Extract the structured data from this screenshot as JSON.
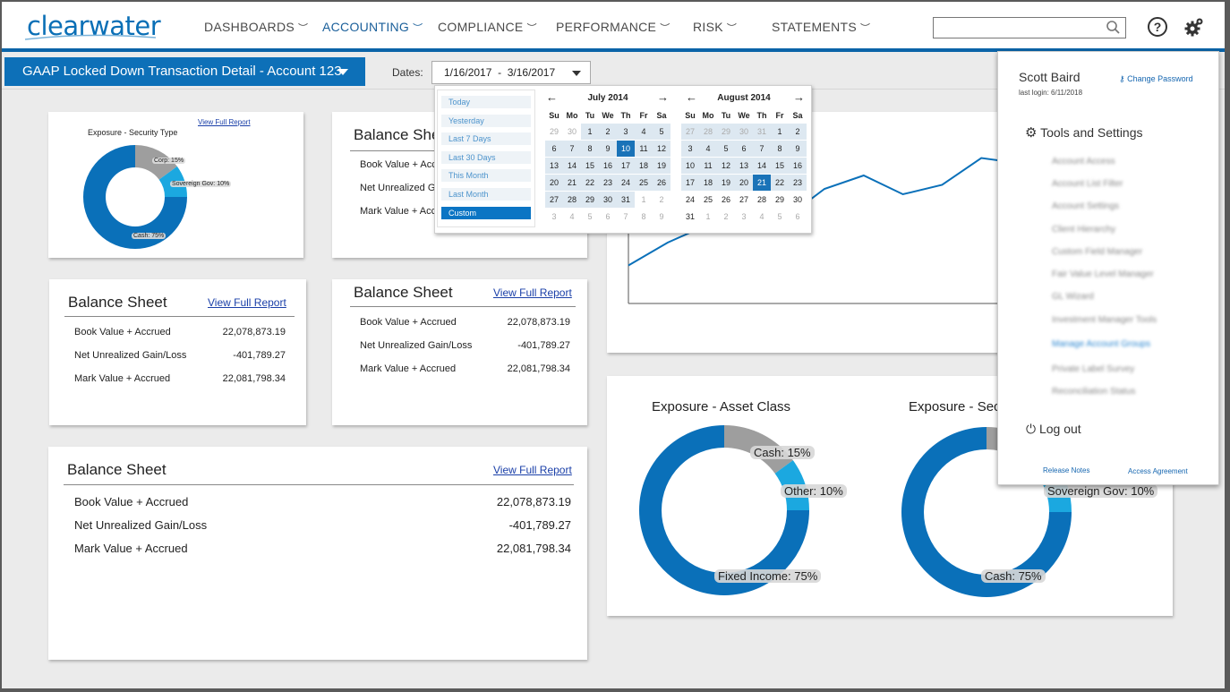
{
  "brand": {
    "name": "clearwater"
  },
  "nav": [
    {
      "label": "DASHBOARDS",
      "active": false
    },
    {
      "label": "ACCOUNTING",
      "active": true
    },
    {
      "label": "COMPLIANCE",
      "active": false
    },
    {
      "label": "PERFORMANCE",
      "active": false
    },
    {
      "label": "RISK",
      "active": false
    },
    {
      "label": "STATEMENTS",
      "active": false
    }
  ],
  "search": {
    "value": ""
  },
  "header": {
    "help_icon": "question-circle-icon",
    "settings_icon": "gear-icon"
  },
  "subbar": {
    "title": "GAAP Locked Down Transaction Detail - Account 123",
    "dates_label": "Dates:",
    "date_from": "1/16/2017",
    "date_sep": "-",
    "date_to": "3/16/2017"
  },
  "date_picker": {
    "quick": [
      "Today",
      "Yesterday",
      "Last 7 Days",
      "Last 30 Days",
      "This Month",
      "Last Month",
      "Custom"
    ],
    "quick_selected": "Custom",
    "dow": [
      "Su",
      "Mo",
      "Tu",
      "We",
      "Th",
      "Fr",
      "Sa"
    ],
    "months": [
      {
        "title": "July 2014",
        "weeks": [
          [
            "29",
            "30",
            "1",
            "2",
            "3",
            "4",
            "5"
          ],
          [
            "6",
            "7",
            "8",
            "9",
            "10",
            "11",
            "12"
          ],
          [
            "13",
            "14",
            "15",
            "16",
            "17",
            "18",
            "19"
          ],
          [
            "20",
            "21",
            "22",
            "23",
            "24",
            "25",
            "26"
          ],
          [
            "27",
            "28",
            "29",
            "30",
            "31",
            "1",
            "2"
          ],
          [
            "3",
            "4",
            "5",
            "6",
            "7",
            "8",
            "9"
          ]
        ]
      },
      {
        "title": "August 2014",
        "weeks": [
          [
            "27",
            "28",
            "29",
            "30",
            "31",
            "1",
            "2"
          ],
          [
            "3",
            "4",
            "5",
            "6",
            "7",
            "8",
            "9"
          ],
          [
            "10",
            "11",
            "12",
            "13",
            "14",
            "15",
            "16"
          ],
          [
            "17",
            "18",
            "19",
            "20",
            "21",
            "22",
            "23"
          ],
          [
            "24",
            "25",
            "26",
            "27",
            "28",
            "29",
            "30"
          ],
          [
            "31",
            "1",
            "2",
            "3",
            "4",
            "5",
            "6"
          ]
        ]
      }
    ]
  },
  "cards": {
    "small_exposure": {
      "title": "Exposure - Security Type",
      "link": "View Full Report",
      "labels": [
        "Corp: 15%",
        "Sovereign Gov: 10%",
        "Cash: 75%"
      ]
    },
    "balance_a": {
      "title": "Balance Sheet",
      "link": "View Full Report",
      "rows": [
        {
          "label": "Book Value + Accrued",
          "value": "22,078,873.19"
        },
        {
          "label": "Net Unrealized Gain/Loss",
          "value": "-401,789.27"
        },
        {
          "label": "Mark Value + Accrued",
          "value": "22,081,798.34"
        }
      ]
    },
    "balance_b": {
      "title": "Balance Sheet",
      "link": "View Full Report",
      "rows": [
        {
          "label": "Book Value + Accrued",
          "value": "22,078,873.19"
        },
        {
          "label": "Net Unrealized Gain/Loss",
          "value": "-401,789.27"
        },
        {
          "label": "Mark Value + Accrued",
          "value": "22,081,798.34"
        }
      ]
    },
    "balance_top": {
      "title": "Balance Sheet",
      "rows": [
        {
          "label": "Book Value + Accrued"
        },
        {
          "label": "Net Unrealized Gain/Loss"
        },
        {
          "label": "Mark Value + Accrued"
        }
      ]
    },
    "balance_big": {
      "title": "Balance Sheet",
      "link": "View Full Report",
      "rows": [
        {
          "label": "Book Value + Accrued",
          "value": "22,078,873.19"
        },
        {
          "label": "Net Unrealized Gain/Loss",
          "value": "-401,789.27"
        },
        {
          "label": "Mark Value + Accrued",
          "value": "22,081,798.34"
        }
      ]
    },
    "exposure_asset": {
      "title": "Exposure - Asset Class",
      "labels": [
        "Cash: 15%",
        "Other: 10%",
        "Fixed Income: 75%"
      ]
    },
    "exposure_sec": {
      "title": "Exposure - Security Type",
      "labels": [
        "Sovereign Gov: 10%",
        "Cash: 75%"
      ]
    }
  },
  "chart_data": [
    {
      "type": "pie",
      "title": "Exposure - Security Type",
      "labels": [
        "Corp",
        "Sovereign Gov",
        "Cash"
      ],
      "values": [
        15,
        10,
        75
      ],
      "colors": [
        "#9e9e9e",
        "#1ba8e0",
        "#0a70b9"
      ]
    },
    {
      "type": "pie",
      "title": "Exposure - Asset Class",
      "labels": [
        "Cash",
        "Other",
        "Fixed Income"
      ],
      "values": [
        15,
        10,
        75
      ],
      "colors": [
        "#9e9e9e",
        "#1ba8e0",
        "#0a70b9"
      ]
    },
    {
      "type": "line",
      "title": "",
      "values": [
        0.15,
        0.32,
        0.45,
        0.6,
        0.5,
        0.72,
        0.82,
        0.68,
        0.75,
        0.95,
        0.91
      ],
      "color": "#0a70b9"
    }
  ],
  "user_menu": {
    "name": "Scott Baird",
    "last_login": "last login: 6/11/2018",
    "change_password": "Change Password",
    "tools_heading": "Tools and Settings",
    "items": [
      "Account Access",
      "Account List Filter",
      "Account Settings",
      "Client Hierarchy",
      "Custom Field Manager",
      "Fair Value Level Manager",
      "GL Wizard",
      "Investment Manager Tools",
      "Manage Account Groups",
      "Private Label Survey",
      "Reconciliation Status"
    ],
    "highlighted_item": "Manage Account Groups",
    "logout": "Log out",
    "release_notes": "Release Notes",
    "access_agreement": "Access Agreement"
  }
}
